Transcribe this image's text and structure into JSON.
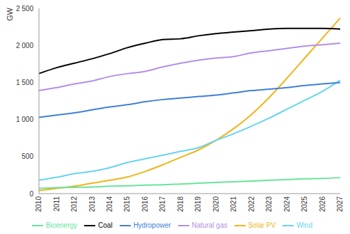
{
  "chart_data": {
    "type": "line",
    "y_label": "GW",
    "categories": [
      "2010",
      "2011",
      "2012",
      "2013",
      "2014",
      "2015",
      "2016",
      "2017",
      "2018",
      "2019",
      "2020",
      "2021",
      "2022",
      "2023",
      "2024",
      "2025",
      "2026",
      "2027"
    ],
    "series": [
      {
        "name": "Solar PV",
        "color": "#f2b417",
        "values": [
          40,
          70,
          100,
          140,
          180,
          225,
          300,
          390,
          490,
          590,
          720,
          880,
          1070,
          1300,
          1560,
          1830,
          2100,
          2370
        ]
      },
      {
        "name": "Wind",
        "color": "#66d3f0",
        "values": [
          180,
          220,
          270,
          300,
          350,
          420,
          470,
          520,
          570,
          620,
          720,
          810,
          910,
          1020,
          1140,
          1260,
          1380,
          1530
        ]
      },
      {
        "name": "Hydropower",
        "color": "#3f7fd6",
        "values": [
          1030,
          1060,
          1090,
          1130,
          1170,
          1200,
          1240,
          1270,
          1290,
          1310,
          1330,
          1360,
          1390,
          1410,
          1430,
          1460,
          1480,
          1500
        ]
      },
      {
        "name": "Bioenergy",
        "color": "#68e39b",
        "values": [
          70,
          80,
          85,
          90,
          100,
          105,
          115,
          120,
          130,
          140,
          150,
          160,
          170,
          180,
          190,
          200,
          205,
          215
        ]
      },
      {
        "name": "Coal",
        "color": "#000000",
        "values": [
          1620,
          1700,
          1760,
          1820,
          1890,
          1970,
          2030,
          2080,
          2090,
          2130,
          2160,
          2180,
          2200,
          2220,
          2230,
          2230,
          2230,
          2220
        ]
      },
      {
        "name": "Natural gas",
        "color": "#b38ee8",
        "values": [
          1390,
          1430,
          1480,
          1520,
          1580,
          1620,
          1650,
          1710,
          1760,
          1800,
          1830,
          1850,
          1900,
          1930,
          1960,
          1990,
          2010,
          2030
        ]
      }
    ],
    "ylim": [
      0,
      2500
    ],
    "yticks": [
      0,
      500,
      {
        "value": 1000,
        "label": "1 000"
      },
      {
        "value": 1500,
        "label": "1 500"
      },
      {
        "value": 2000,
        "label": "2 000"
      },
      {
        "value": 2500,
        "label": "2 500"
      }
    ],
    "grid": false,
    "legend": "bottom"
  }
}
